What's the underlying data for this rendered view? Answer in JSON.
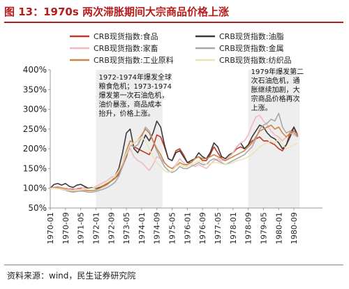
{
  "page": {
    "title": "图 13：1970s 两次滞胀期间大宗商品价格上涨",
    "source": "资料来源：wind，民生证券研究院"
  },
  "colors": {
    "title": "#b71c1c",
    "shade": "#eeeeee"
  },
  "chart_data": {
    "type": "line",
    "title": "",
    "xlabel": "",
    "ylabel": "",
    "ylim": [
      0.5,
      4.0
    ],
    "y_ticks": [
      0.5,
      1.0,
      1.5,
      2.0,
      2.5,
      3.0,
      3.5,
      4.0
    ],
    "y_tick_labels": [
      "50%",
      "100%",
      "150%",
      "200%",
      "250%",
      "300%",
      "350%",
      "400%"
    ],
    "x_tick_labels": [
      "1970-01",
      "1970-09",
      "1971-05",
      "1972-01",
      "1972-09",
      "1973-05",
      "1974-01",
      "1974-09",
      "1975-05",
      "1976-01",
      "1976-09",
      "1977-05",
      "1978-01",
      "1978-09",
      "1979-05",
      "1980-01",
      "1980-09"
    ],
    "legend_position": "top",
    "legend_columns": 2,
    "shaded_periods": [
      {
        "start": "1972-01",
        "end": "1974-12"
      },
      {
        "start": "1978-09",
        "end": "1980-12"
      }
    ],
    "annotations": [
      {
        "text": "1972-1974年爆发全球粮食危机；1973-1974爆发第一次石油危机，油价暴涨，商品成本抬升，价格上涨。",
        "anchor": "1972-01",
        "lines": [
          "1972-1974年爆发全球",
          "粮食危机；1973-1974",
          "爆发第一次石油危机，",
          "油价暴涨，商品成本",
          "抬升，价格上涨。"
        ]
      },
      {
        "text": "1979年爆发第二次石油危机，通胀继续加剧，大宗商品价格再次上涨。",
        "anchor": "1978-09",
        "lines": [
          "1979年爆发第二",
          "次石油危机，通",
          "胀继续加剧，大",
          "宗商品价格再次",
          "上涨。"
        ]
      }
    ],
    "x": [
      "1970-01",
      "1970-03",
      "1970-05",
      "1970-07",
      "1970-09",
      "1970-11",
      "1971-01",
      "1971-03",
      "1971-05",
      "1971-07",
      "1971-09",
      "1971-11",
      "1972-01",
      "1972-03",
      "1972-05",
      "1972-07",
      "1972-09",
      "1972-11",
      "1973-01",
      "1973-03",
      "1973-05",
      "1973-07",
      "1973-09",
      "1973-11",
      "1974-01",
      "1974-03",
      "1974-05",
      "1974-07",
      "1974-09",
      "1974-11",
      "1975-01",
      "1975-03",
      "1975-05",
      "1975-07",
      "1975-09",
      "1975-11",
      "1976-01",
      "1976-03",
      "1976-05",
      "1976-07",
      "1976-09",
      "1976-11",
      "1977-01",
      "1977-03",
      "1977-05",
      "1977-07",
      "1977-09",
      "1977-11",
      "1978-01",
      "1978-03",
      "1978-05",
      "1978-07",
      "1978-09",
      "1978-11",
      "1979-01",
      "1979-03",
      "1979-05",
      "1979-07",
      "1979-09",
      "1979-11",
      "1980-01",
      "1980-03",
      "1980-05",
      "1980-07",
      "1980-09",
      "1980-11"
    ],
    "series": [
      {
        "name": "CRB现货指数:食品",
        "color": "#c0392b",
        "values": [
          1.0,
          1.02,
          1.03,
          1.01,
          1.0,
          0.98,
          0.97,
          0.99,
          1.0,
          1.01,
          1.0,
          1.0,
          1.02,
          1.05,
          1.08,
          1.12,
          1.18,
          1.25,
          1.35,
          1.55,
          1.8,
          2.1,
          2.05,
          2.0,
          1.95,
          1.9,
          1.85,
          2.05,
          2.35,
          2.3,
          2.05,
          1.75,
          1.7,
          1.95,
          2.0,
          1.85,
          1.65,
          1.65,
          1.75,
          1.8,
          1.7,
          1.7,
          1.85,
          2.05,
          1.9,
          1.75,
          1.7,
          1.8,
          1.9,
          2.0,
          2.05,
          2.0,
          2.1,
          2.2,
          2.25,
          2.3,
          2.2,
          2.2,
          2.15,
          2.1,
          2.0,
          1.95,
          2.1,
          2.4,
          2.55,
          2.35
        ]
      },
      {
        "name": "CRB现货指数:油脂",
        "color": "#3a3a3a",
        "values": [
          1.0,
          1.1,
          1.12,
          1.08,
          1.12,
          1.05,
          1.02,
          1.08,
          1.1,
          1.05,
          1.0,
          1.02,
          1.0,
          1.02,
          1.05,
          1.1,
          1.2,
          1.3,
          1.5,
          1.9,
          2.4,
          2.5,
          2.0,
          1.9,
          2.1,
          2.35,
          2.2,
          2.4,
          2.7,
          2.55,
          2.1,
          1.75,
          1.7,
          1.9,
          1.95,
          1.8,
          1.65,
          1.7,
          1.75,
          1.9,
          1.8,
          1.75,
          1.9,
          2.15,
          2.05,
          1.8,
          1.75,
          1.85,
          1.9,
          2.05,
          2.15,
          2.0,
          2.1,
          2.3,
          2.45,
          2.6,
          2.55,
          2.4,
          2.3,
          2.25,
          2.15,
          2.0,
          2.1,
          2.3,
          2.55,
          2.3
        ]
      },
      {
        "name": "CRB现货指数:家畜",
        "color": "#f2b8bf",
        "values": [
          1.0,
          1.03,
          1.05,
          1.02,
          1.0,
          0.97,
          0.95,
          1.0,
          1.02,
          1.0,
          0.98,
          1.0,
          1.05,
          1.1,
          1.15,
          1.2,
          1.28,
          1.3,
          1.45,
          1.6,
          1.85,
          2.0,
          1.8,
          1.7,
          1.65,
          1.55,
          1.45,
          1.6,
          1.8,
          1.75,
          1.65,
          1.55,
          1.5,
          1.6,
          1.75,
          1.65,
          1.55,
          1.6,
          1.55,
          1.6,
          1.55,
          1.5,
          1.6,
          1.7,
          1.75,
          1.7,
          1.7,
          1.8,
          1.9,
          2.05,
          2.15,
          2.2,
          2.35,
          2.6,
          2.8,
          2.85,
          2.7,
          2.6,
          2.45,
          2.35,
          2.3,
          2.2,
          2.3,
          2.4,
          2.35,
          2.3
        ]
      },
      {
        "name": "CRB现货指数:金属",
        "color": "#a9a9a9",
        "values": [
          1.0,
          1.02,
          1.0,
          0.97,
          0.95,
          0.92,
          0.9,
          0.92,
          0.93,
          0.92,
          0.9,
          0.9,
          0.92,
          0.95,
          0.98,
          1.02,
          1.08,
          1.15,
          1.3,
          1.55,
          1.85,
          2.1,
          2.05,
          2.1,
          2.3,
          2.55,
          2.45,
          2.2,
          1.95,
          1.75,
          1.55,
          1.45,
          1.4,
          1.45,
          1.55,
          1.5,
          1.5,
          1.55,
          1.6,
          1.65,
          1.6,
          1.6,
          1.7,
          1.75,
          1.7,
          1.65,
          1.6,
          1.65,
          1.7,
          1.75,
          1.8,
          1.85,
          1.95,
          2.05,
          2.25,
          2.5,
          2.6,
          2.65,
          2.75,
          2.7,
          2.9,
          2.55,
          2.4,
          2.45,
          2.4,
          2.3
        ]
      },
      {
        "name": "CRB现货指数:工业原料",
        "color": "#c8874a",
        "values": [
          1.0,
          1.01,
          1.02,
          1.0,
          0.98,
          0.95,
          0.93,
          0.95,
          0.96,
          0.95,
          0.94,
          0.94,
          0.96,
          1.0,
          1.05,
          1.1,
          1.18,
          1.25,
          1.4,
          1.65,
          1.95,
          2.2,
          2.15,
          2.2,
          2.35,
          2.5,
          2.4,
          2.2,
          2.0,
          1.85,
          1.65,
          1.55,
          1.5,
          1.55,
          1.65,
          1.6,
          1.6,
          1.65,
          1.75,
          1.8,
          1.75,
          1.75,
          1.8,
          1.85,
          1.8,
          1.75,
          1.7,
          1.75,
          1.8,
          1.85,
          1.9,
          1.95,
          2.05,
          2.15,
          2.3,
          2.45,
          2.5,
          2.55,
          2.6,
          2.5,
          2.55,
          2.4,
          2.3,
          2.4,
          2.45,
          2.35
        ]
      },
      {
        "name": "CRB现货指数:纺织品",
        "color": "#eee3b4",
        "values": [
          1.0,
          1.0,
          0.99,
          0.98,
          0.96,
          0.95,
          0.94,
          0.95,
          0.96,
          0.97,
          0.98,
          1.0,
          1.02,
          1.05,
          1.1,
          1.15,
          1.22,
          1.3,
          1.45,
          1.65,
          1.9,
          2.1,
          2.15,
          2.2,
          2.3,
          2.2,
          2.0,
          1.8,
          1.65,
          1.55,
          1.45,
          1.4,
          1.45,
          1.55,
          1.6,
          1.55,
          1.55,
          1.6,
          1.65,
          1.7,
          1.65,
          1.6,
          1.62,
          1.65,
          1.65,
          1.62,
          1.6,
          1.62,
          1.65,
          1.7,
          1.72,
          1.75,
          1.8,
          1.85,
          1.95,
          2.05,
          2.1,
          2.15,
          2.2,
          2.15,
          2.25,
          2.1,
          2.0,
          2.05,
          2.1,
          2.15
        ]
      }
    ]
  }
}
